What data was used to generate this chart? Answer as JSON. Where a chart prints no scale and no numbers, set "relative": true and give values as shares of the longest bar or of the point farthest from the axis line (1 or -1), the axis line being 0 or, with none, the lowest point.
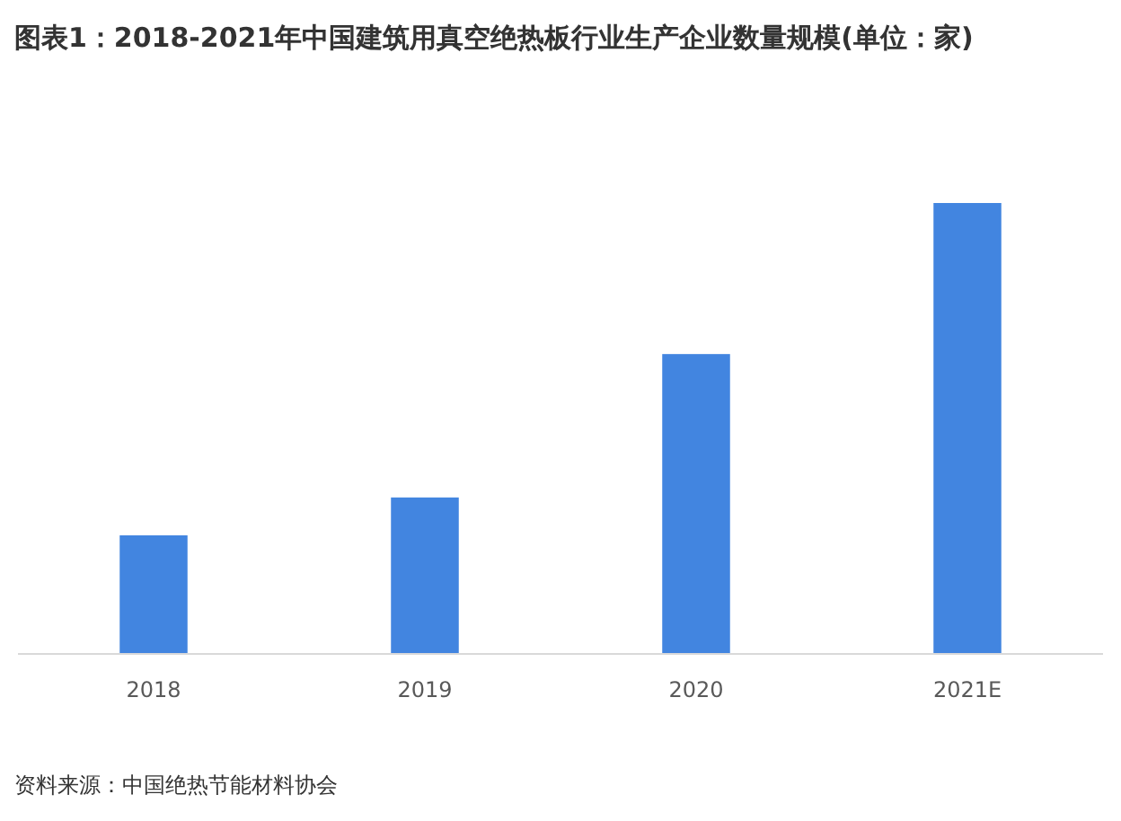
{
  "chart_data": {
    "type": "bar",
    "title": "图表1：2018-2021年中国建筑用真空绝热板行业生产企业数量规模(单位：家)",
    "categories": [
      "2018",
      "2019",
      "2020",
      "2021E"
    ],
    "values": [
      0.263,
      0.347,
      0.665,
      1
    ],
    "color": "#4285e0",
    "relative": true,
    "annotations": [
      "资料来源：中国绝热节能材料协会"
    ]
  }
}
